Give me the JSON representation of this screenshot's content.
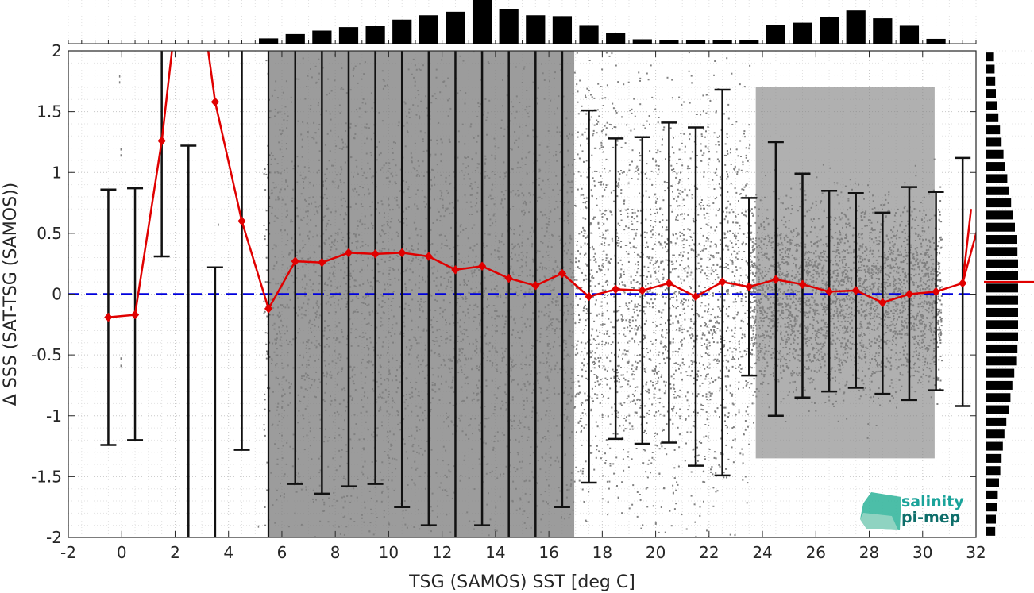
{
  "chart_data": {
    "type": "scatter",
    "title": "",
    "xlabel": "TSG (SAMOS) SST [deg C]",
    "ylabel": "Δ SSS (SAT-TSG (SAMOS))",
    "xlim": [
      -2,
      32
    ],
    "ylim": [
      -2,
      2
    ],
    "xticks": [
      "-2",
      "0",
      "2",
      "4",
      "6",
      "8",
      "10",
      "12",
      "14",
      "16",
      "18",
      "20",
      "22",
      "24",
      "26",
      "28",
      "30",
      "32"
    ],
    "yticks": [
      "-2",
      "-1.5",
      "-1",
      "-0.5",
      "0",
      "0.5",
      "1",
      "1.5",
      "2"
    ],
    "grid": true,
    "reference_line": {
      "y": 0,
      "color": "#0000dd",
      "style": "dashed"
    },
    "series": [
      {
        "type": "line",
        "color": "#e00000",
        "marker": "diamond",
        "x": [
          -0.5,
          0.5,
          1.5,
          2.5,
          3.5,
          4.5,
          5.5,
          6.5,
          7.5,
          8.5,
          9.5,
          10.5,
          11.5,
          12.5,
          13.5,
          14.5,
          15.5,
          16.5,
          17.5,
          18.5,
          19.5,
          20.5,
          21.5,
          22.5,
          23.5,
          24.5,
          25.5,
          26.5,
          27.5,
          28.5,
          29.5,
          30.5,
          31.5,
          32.5
        ],
        "mean": [
          -0.19,
          -0.17,
          1.26,
          3.2,
          1.58,
          0.6,
          -0.12,
          0.27,
          0.26,
          0.34,
          0.33,
          0.34,
          0.31,
          0.2,
          0.23,
          0.13,
          0.07,
          0.17,
          -0.02,
          0.04,
          0.03,
          0.09,
          -0.02,
          0.1,
          0.06,
          0.12,
          0.08,
          0.02,
          0.03,
          -0.07,
          0.0,
          0.02,
          0.09,
          0.9
        ],
        "err_upper": [
          0.86,
          0.87,
          null,
          1.22,
          0.22,
          null,
          null,
          null,
          null,
          null,
          null,
          null,
          null,
          null,
          null,
          null,
          null,
          null,
          1.51,
          1.28,
          1.29,
          1.41,
          1.37,
          1.68,
          0.79,
          1.25,
          0.99,
          0.85,
          0.83,
          0.67,
          0.88,
          0.84,
          1.12,
          null
        ],
        "err_lower": [
          -1.24,
          -1.2,
          0.31,
          null,
          null,
          -1.28,
          null,
          -1.56,
          -1.64,
          -1.58,
          -1.56,
          -1.75,
          -1.9,
          null,
          -1.9,
          null,
          null,
          -1.75,
          -1.55,
          -1.19,
          -1.23,
          -1.22,
          -1.41,
          -1.49,
          -0.67,
          -1.0,
          -0.85,
          -0.8,
          -0.77,
          -0.82,
          -0.87,
          -0.79,
          -0.92,
          null
        ]
      }
    ],
    "scatter_points": {
      "color": "#808080",
      "point_clouds": [
        {
          "x_range": [
            5.3,
            17.2
          ],
          "y_range": [
            -2,
            2
          ]
        },
        {
          "x_range": [
            17.2,
            23.5
          ],
          "y_range": [
            -2,
            2
          ]
        },
        {
          "x_range": [
            23.5,
            30.7
          ],
          "y_range": [
            -1.6,
            1.9
          ]
        }
      ]
    },
    "top_histogram": {
      "x": [
        5.5,
        6.5,
        7.5,
        8.5,
        9.5,
        10.5,
        11.5,
        12.5,
        13.5,
        14.5,
        15.5,
        16.5,
        17.5,
        18.5,
        19.5,
        20.5,
        21.5,
        22.5,
        23.5,
        24.5,
        25.5,
        26.5,
        27.5,
        28.5,
        29.5,
        30.5
      ],
      "counts": [
        0.12,
        0.22,
        0.3,
        0.38,
        0.4,
        0.55,
        0.65,
        0.73,
        1.0,
        0.8,
        0.65,
        0.63,
        0.41,
        0.24,
        0.1,
        0.08,
        0.08,
        0.08,
        0.08,
        0.42,
        0.48,
        0.6,
        0.76,
        0.58,
        0.41,
        0.11
      ]
    },
    "right_histogram": {
      "y": [
        -1.95,
        -1.85,
        -1.75,
        -1.65,
        -1.55,
        -1.45,
        -1.35,
        -1.25,
        -1.15,
        -1.05,
        -0.95,
        -0.85,
        -0.75,
        -0.65,
        -0.55,
        -0.45,
        -0.35,
        -0.25,
        -0.15,
        -0.05,
        0.05,
        0.15,
        0.25,
        0.35,
        0.45,
        0.55,
        0.65,
        0.75,
        0.85,
        0.95,
        1.05,
        1.15,
        1.25,
        1.35,
        1.45,
        1.55,
        1.65,
        1.75,
        1.85,
        1.95
      ],
      "counts": [
        0.28,
        0.3,
        0.33,
        0.36,
        0.4,
        0.44,
        0.48,
        0.52,
        0.57,
        0.63,
        0.7,
        0.76,
        0.82,
        0.88,
        0.94,
        0.98,
        1.0,
        1.0,
        1.0,
        1.0,
        1.0,
        1.0,
        1.0,
        0.98,
        0.95,
        0.9,
        0.84,
        0.78,
        0.72,
        0.66,
        0.6,
        0.54,
        0.48,
        0.43,
        0.38,
        0.34,
        0.3,
        0.28,
        0.26,
        0.24
      ]
    },
    "right_marker_y": 0.1
  },
  "logo": {
    "line1": "salinity",
    "line2": "pi-mep",
    "color1": "#1aa39a",
    "color2": "#0e6e6a"
  }
}
